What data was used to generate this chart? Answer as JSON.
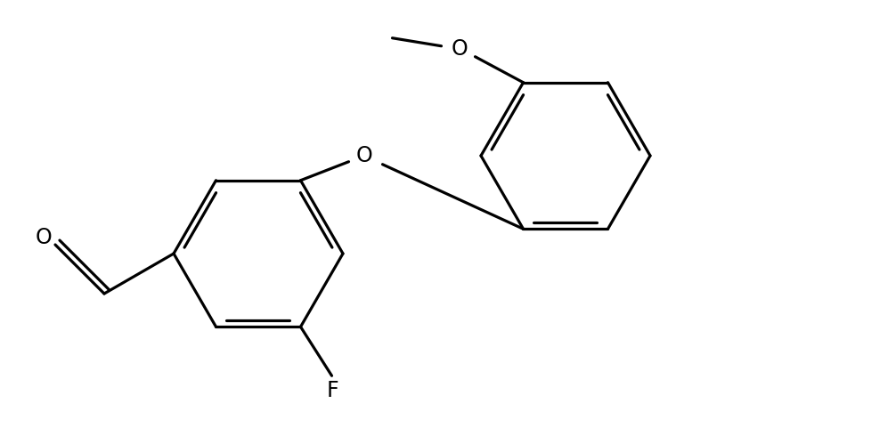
{
  "background_color": "#ffffff",
  "line_color": "#000000",
  "line_width": 2.3,
  "label_fontsize": 17,
  "fig_width": 10.06,
  "fig_height": 4.9,
  "dpi": 100,
  "xlim": [
    0.0,
    10.06
  ],
  "ylim": [
    0.0,
    4.9
  ]
}
